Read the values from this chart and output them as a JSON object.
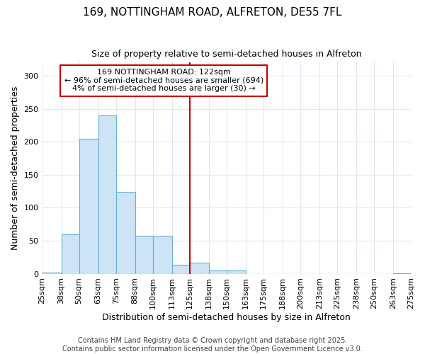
{
  "title_line1": "169, NOTTINGHAM ROAD, ALFRETON, DE55 7FL",
  "title_line2": "Size of property relative to semi-detached houses in Alfreton",
  "xlabel": "Distribution of semi-detached houses by size in Alfreton",
  "ylabel": "Number of semi-detached properties",
  "footer_line1": "Contains HM Land Registry data © Crown copyright and database right 2025.",
  "footer_line2": "Contains public sector information licensed under the Open Government Licence v3.0.",
  "annotation_title": "169 NOTTINGHAM ROAD: 122sqm",
  "annotation_line2": "← 96% of semi-detached houses are smaller (694)",
  "annotation_line3": "4% of semi-detached houses are larger (30) →",
  "bar_color": "#cce4f5",
  "bar_edge_color": "#6baed6",
  "vline_color": "#cc0000",
  "vline_x": 125,
  "bin_edges": [
    25,
    38,
    50,
    63,
    75,
    88,
    100,
    113,
    125,
    138,
    150,
    163,
    175,
    188,
    200,
    213,
    225,
    238,
    250,
    263,
    275
  ],
  "bar_heights": [
    2,
    60,
    205,
    240,
    124,
    57,
    57,
    13,
    17,
    5,
    5,
    0,
    0,
    0,
    0,
    0,
    0,
    0,
    0,
    1
  ],
  "ylim": [
    0,
    320
  ],
  "yticks": [
    0,
    50,
    100,
    150,
    200,
    250,
    300
  ],
  "background_color": "#ffffff",
  "grid_color": "#dde8f5",
  "title_fontsize": 11,
  "subtitle_fontsize": 9,
  "tick_label_fontsize": 8,
  "axis_label_fontsize": 9,
  "annotation_fontsize": 8,
  "footer_fontsize": 7
}
